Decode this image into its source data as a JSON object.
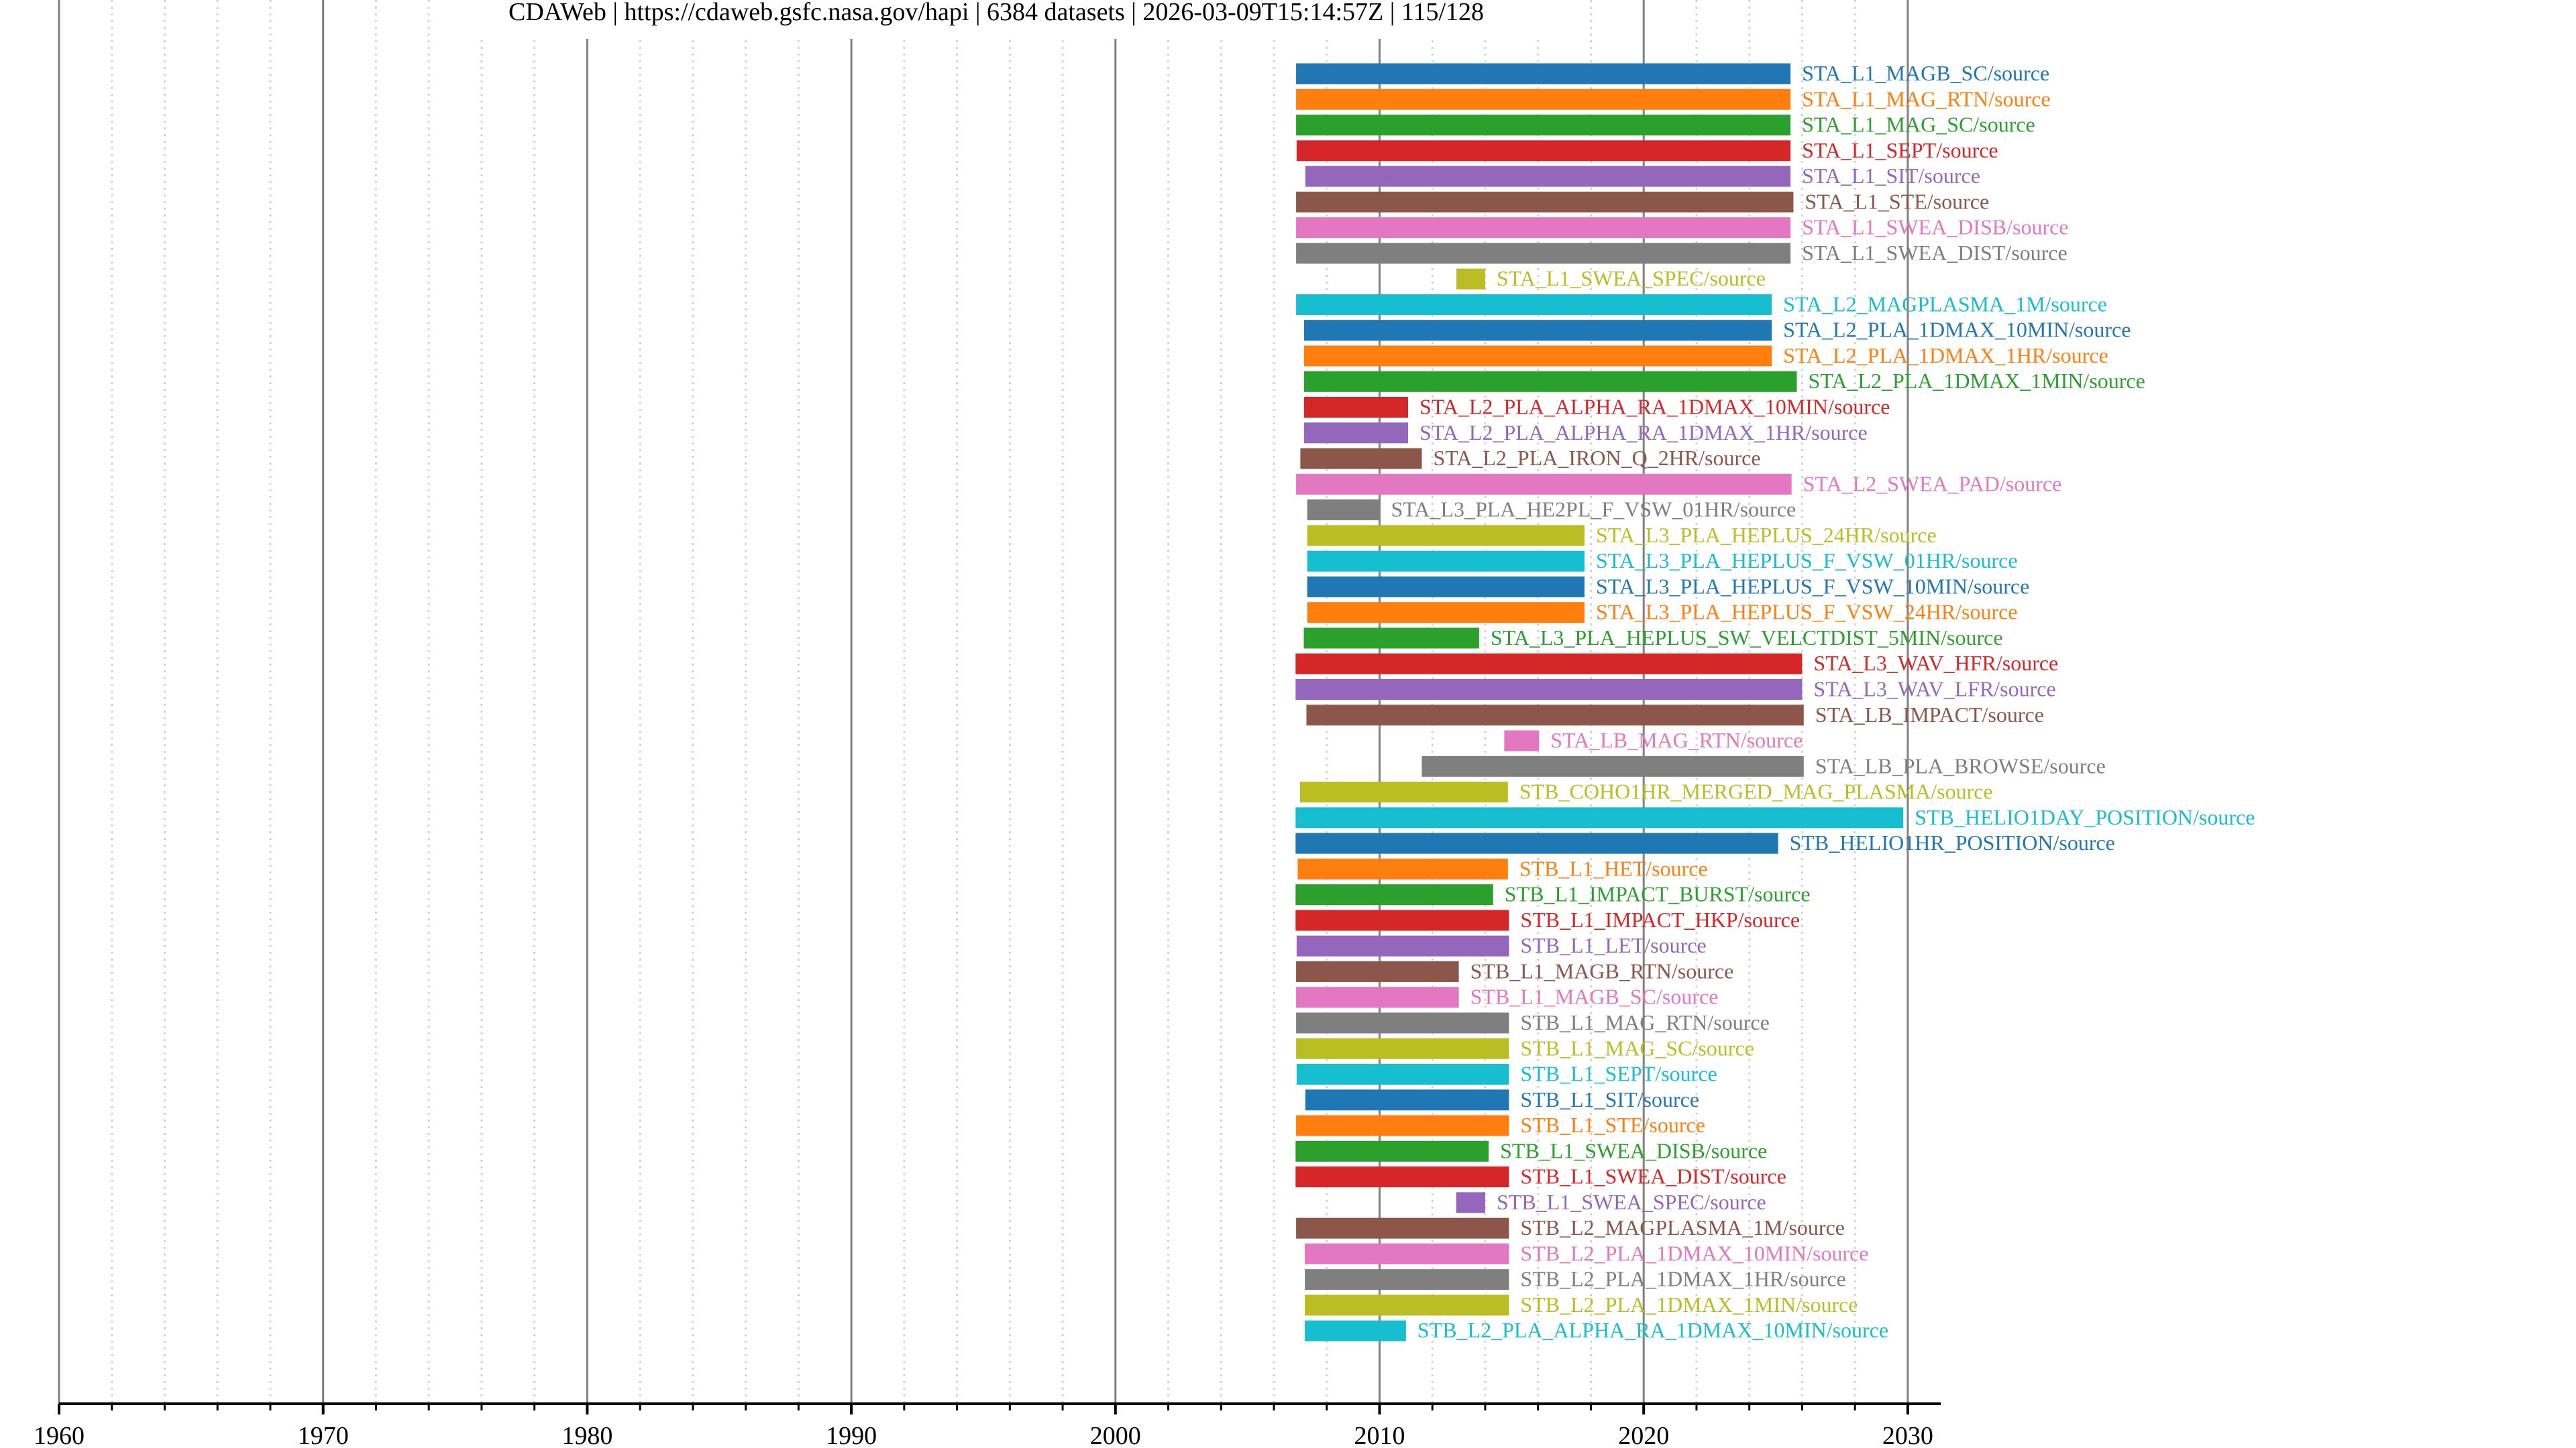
{
  "title": "CDAWeb | https://cdaweb.gsfc.nasa.gov/hapi | 6384 datasets | 2026-03-09T15:14:57Z | 115/128",
  "chart_data": {
    "type": "bar",
    "orientation": "horizontal-timeline",
    "title": "CDAWeb | https://cdaweb.gsfc.nasa.gov/hapi | 6384 datasets | 2026-03-09T15:14:57Z | 115/128",
    "xlabel": "",
    "ylabel": "",
    "xlim": [
      1960,
      2031.25
    ],
    "x_major_ticks": [
      1960,
      1970,
      1980,
      1990,
      2000,
      2010,
      2020,
      2030
    ],
    "x_tick_labels": [
      "1960",
      "1970",
      "1980",
      "1990",
      "2000",
      "2010",
      "2020",
      "2030"
    ],
    "x_minor_tick_step": 2,
    "grid": true,
    "legend": "inline labels right of bars",
    "palette": [
      "#1f77b4",
      "#ff7f0e",
      "#2ca02c",
      "#d62728",
      "#9467bd",
      "#8c564b",
      "#e377c2",
      "#7f7f7f",
      "#bcbd22",
      "#17becf"
    ],
    "series": [
      {
        "name": "STA_L1_MAGB_SC/source",
        "start": 2006.84,
        "stop": 2025.56
      },
      {
        "name": "STA_L1_MAG_RTN/source",
        "start": 2006.84,
        "stop": 2025.56
      },
      {
        "name": "STA_L1_MAG_SC/source",
        "start": 2006.84,
        "stop": 2025.56
      },
      {
        "name": "STA_L1_SEPT/source",
        "start": 2006.86,
        "stop": 2025.56
      },
      {
        "name": "STA_L1_SIT/source",
        "start": 2007.19,
        "stop": 2025.56
      },
      {
        "name": "STA_L1_STE/source",
        "start": 2006.84,
        "stop": 2025.67
      },
      {
        "name": "STA_L1_SWEA_DISB/source",
        "start": 2006.84,
        "stop": 2025.56
      },
      {
        "name": "STA_L1_SWEA_DIST/source",
        "start": 2006.84,
        "stop": 2025.56
      },
      {
        "name": "STA_L1_SWEA_SPEC/source",
        "start": 2012.91,
        "stop": 2014.0
      },
      {
        "name": "STA_L2_MAGPLASMA_1M/source",
        "start": 2006.84,
        "stop": 2024.85
      },
      {
        "name": "STA_L2_PLA_1DMAX_10MIN/source",
        "start": 2007.14,
        "stop": 2024.85
      },
      {
        "name": "STA_L2_PLA_1DMAX_1HR/source",
        "start": 2007.14,
        "stop": 2024.85
      },
      {
        "name": "STA_L2_PLA_1DMAX_1MIN/source",
        "start": 2007.14,
        "stop": 2025.8
      },
      {
        "name": "STA_L2_PLA_ALPHA_RA_1DMAX_10MIN/source",
        "start": 2007.14,
        "stop": 2011.08
      },
      {
        "name": "STA_L2_PLA_ALPHA_RA_1DMAX_1HR/source",
        "start": 2007.14,
        "stop": 2011.08
      },
      {
        "name": "STA_L2_PLA_IRON_Q_2HR/source",
        "start": 2007.0,
        "stop": 2011.6
      },
      {
        "name": "STA_L2_SWEA_PAD/source",
        "start": 2006.84,
        "stop": 2025.6
      },
      {
        "name": "STA_L3_PLA_HE2PL_F_VSW_01HR/source",
        "start": 2007.26,
        "stop": 2010.0
      },
      {
        "name": "STA_L3_PLA_HEPLUS_24HR/source",
        "start": 2007.26,
        "stop": 2017.76
      },
      {
        "name": "STA_L3_PLA_HEPLUS_F_VSW_01HR/source",
        "start": 2007.26,
        "stop": 2017.76
      },
      {
        "name": "STA_L3_PLA_HEPLUS_F_VSW_10MIN/source",
        "start": 2007.26,
        "stop": 2017.76
      },
      {
        "name": "STA_L3_PLA_HEPLUS_F_VSW_24HR/source",
        "start": 2007.26,
        "stop": 2017.76
      },
      {
        "name": "STA_L3_PLA_HEPLUS_SW_VELCTDIST_5MIN/source",
        "start": 2007.13,
        "stop": 2013.77
      },
      {
        "name": "STA_L3_WAV_HFR/source",
        "start": 2006.82,
        "stop": 2026.0
      },
      {
        "name": "STA_L3_WAV_LFR/source",
        "start": 2006.82,
        "stop": 2026.0
      },
      {
        "name": "STA_LB_IMPACT/source",
        "start": 2007.23,
        "stop": 2026.06
      },
      {
        "name": "STA_LB_MAG_RTN/source",
        "start": 2014.72,
        "stop": 2016.04
      },
      {
        "name": "STA_LB_PLA_BROWSE/source",
        "start": 2011.6,
        "stop": 2026.06
      },
      {
        "name": "STB_COHO1HR_MERGED_MAG_PLASMA/source",
        "start": 2006.99,
        "stop": 2014.86
      },
      {
        "name": "STB_HELIO1DAY_POSITION/source",
        "start": 2006.82,
        "stop": 2029.83
      },
      {
        "name": "STB_HELIO1HR_POSITION/source",
        "start": 2006.82,
        "stop": 2025.09
      },
      {
        "name": "STB_L1_HET/source",
        "start": 2006.9,
        "stop": 2014.86
      },
      {
        "name": "STB_L1_IMPACT_BURST/source",
        "start": 2006.82,
        "stop": 2014.3
      },
      {
        "name": "STB_L1_IMPACT_HKP/source",
        "start": 2006.82,
        "stop": 2014.9
      },
      {
        "name": "STB_L1_LET/source",
        "start": 2006.86,
        "stop": 2014.9
      },
      {
        "name": "STB_L1_MAGB_RTN/source",
        "start": 2006.84,
        "stop": 2013.0
      },
      {
        "name": "STB_L1_MAGB_SC/source",
        "start": 2006.84,
        "stop": 2013.0
      },
      {
        "name": "STB_L1_MAG_RTN/source",
        "start": 2006.84,
        "stop": 2014.9
      },
      {
        "name": "STB_L1_MAG_SC/source",
        "start": 2006.84,
        "stop": 2014.9
      },
      {
        "name": "STB_L1_SEPT/source",
        "start": 2006.86,
        "stop": 2014.9
      },
      {
        "name": "STB_L1_SIT/source",
        "start": 2007.19,
        "stop": 2014.9
      },
      {
        "name": "STB_L1_STE/source",
        "start": 2006.84,
        "stop": 2014.9
      },
      {
        "name": "STB_L1_SWEA_DISB/source",
        "start": 2006.82,
        "stop": 2014.13
      },
      {
        "name": "STB_L1_SWEA_DIST/source",
        "start": 2006.82,
        "stop": 2014.9
      },
      {
        "name": "STB_L1_SWEA_SPEC/source",
        "start": 2012.9,
        "stop": 2014.0
      },
      {
        "name": "STB_L2_MAGPLASMA_1M/source",
        "start": 2006.84,
        "stop": 2014.9
      },
      {
        "name": "STB_L2_PLA_1DMAX_10MIN/source",
        "start": 2007.17,
        "stop": 2014.9
      },
      {
        "name": "STB_L2_PLA_1DMAX_1HR/source",
        "start": 2007.17,
        "stop": 2014.9
      },
      {
        "name": "STB_L2_PLA_1DMAX_1MIN/source",
        "start": 2007.17,
        "stop": 2014.9
      },
      {
        "name": "STB_L2_PLA_ALPHA_RA_1DMAX_10MIN/source",
        "start": 2007.17,
        "stop": 2011.0
      }
    ]
  }
}
